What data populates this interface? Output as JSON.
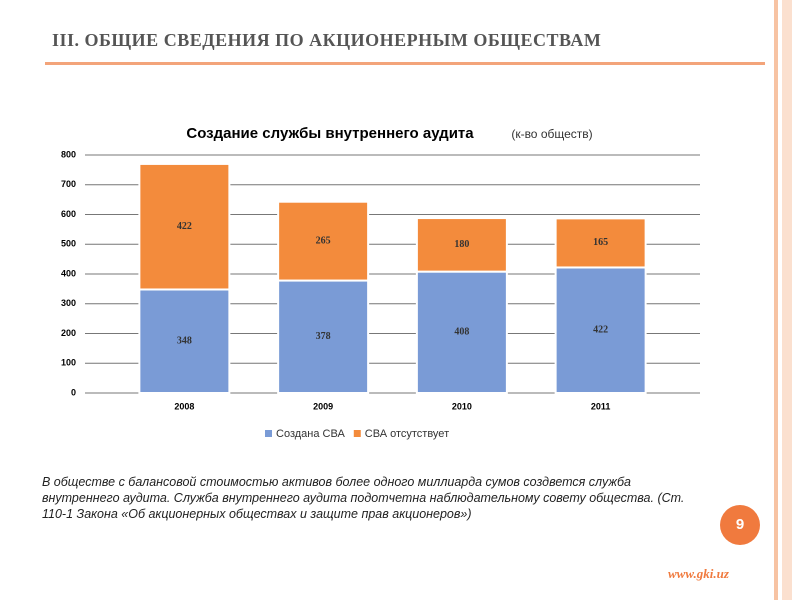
{
  "slide": {
    "header": "III. ОБЩИЕ СВЕДЕНИЯ ПО АКЦИОНЕРНЫМ ОБЩЕСТВАМ",
    "note": "В обществе с балансовой стоимостью активов более одного миллиарда сумов создвется служба внутреннего аудита. Служба внутреннего аудита подотчетна наблюдательному совету общества. (Ст. 110-1 Закона «Об акционерных обществах и защите прав акционеров»)",
    "page_number": "9",
    "url": "www.gki.uz"
  },
  "chart_data": {
    "type": "stacked_bar",
    "title": "Создание службы внутреннего аудита",
    "subtitle": "(к-во обществ)",
    "categories": [
      "2008",
      "2009",
      "2010",
      "2011"
    ],
    "series": [
      {
        "name": "Создана СВА",
        "color": "#7a9bd6",
        "values": [
          348,
          378,
          408,
          422
        ]
      },
      {
        "name": "СВА отсутствует",
        "color": "#f38b3c",
        "values": [
          422,
          265,
          180,
          165
        ]
      }
    ],
    "ylim": [
      0,
      800
    ],
    "yticks": [
      0,
      100,
      200,
      300,
      400,
      500,
      600,
      700,
      800
    ],
    "grid": true,
    "legend": "bottom"
  }
}
